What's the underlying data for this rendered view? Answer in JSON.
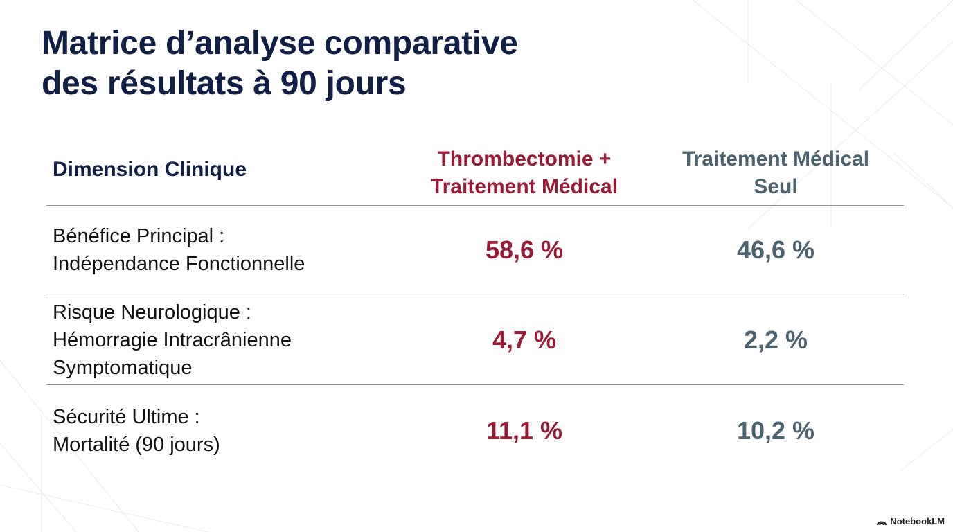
{
  "title": {
    "line1": "Matrice d’analyse comparative",
    "line2": "des résultats à 90 jours"
  },
  "table": {
    "headers": {
      "dimension": "Dimension Clinique",
      "treatment_line1": "Thrombectomie +",
      "treatment_line2": "Traitement Médical",
      "control_line1": "Traitement Médical",
      "control_line2": "Seul"
    },
    "rows": [
      {
        "label_lines": [
          "Bénéfice Principal :",
          "Indépendance Fonctionnelle",
          ""
        ],
        "treatment": "58,6 %",
        "control": "46,6 %"
      },
      {
        "label_lines": [
          "Risque Neurologique :",
          "Hémorragie Intracrânienne",
          "Symptomatique"
        ],
        "treatment": "4,7 %",
        "control": "2,2 %"
      },
      {
        "label_lines": [
          "Sécurité Ultime :",
          "Mortalité (90 jours)",
          ""
        ],
        "treatment": "11,1 %",
        "control": "10,2 %"
      }
    ]
  },
  "brand": {
    "label": "NotebookLM",
    "icon": "notebooklm-logo-icon"
  },
  "colors": {
    "title": "#0f1f45",
    "treatment_accent": "#9b1a36",
    "control_accent": "#4b6370",
    "rule": "#8a8f98"
  }
}
